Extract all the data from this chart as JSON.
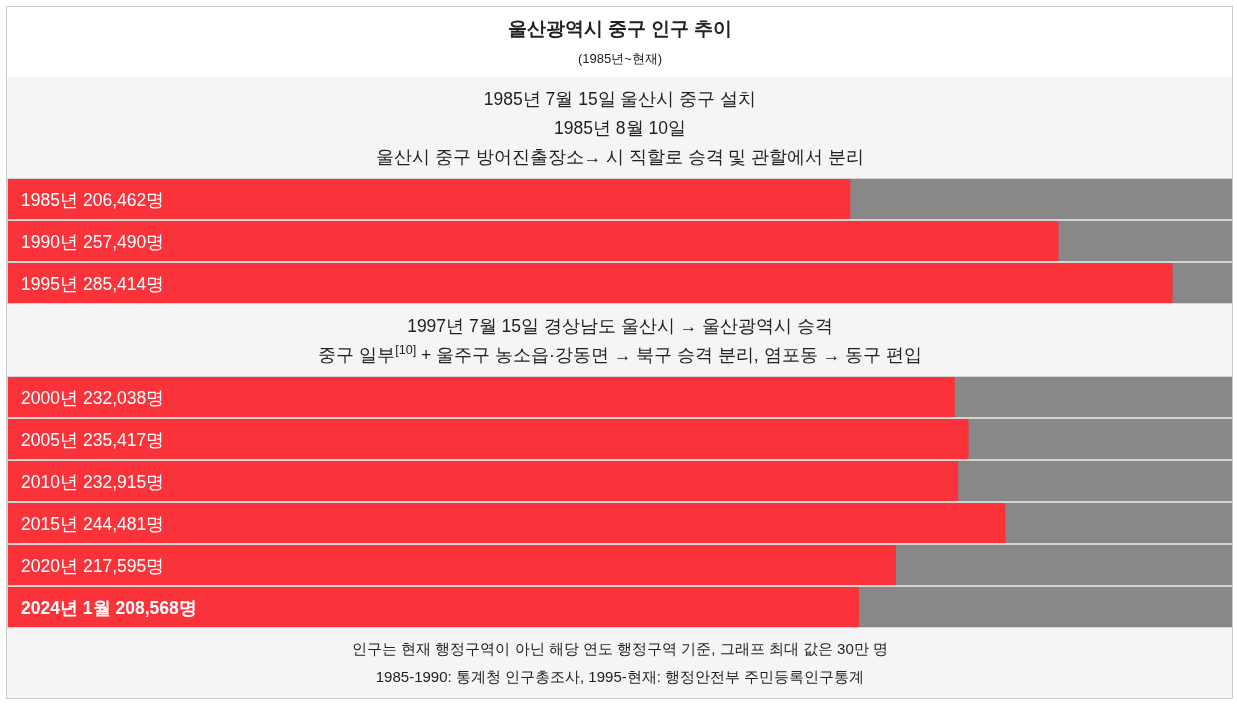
{
  "chart_data": {
    "type": "bar",
    "orientation": "horizontal",
    "title": "울산광역시 중구 인구 추이",
    "subtitle": "(1985년~현재)",
    "categories": [
      "1985년",
      "1990년",
      "1995년",
      "2000년",
      "2005년",
      "2010년",
      "2015년",
      "2020년",
      "2024년 1월"
    ],
    "values": [
      206462,
      257490,
      285414,
      232038,
      235417,
      232915,
      244481,
      217595,
      208568
    ],
    "value_labels": [
      "206,462명",
      "257,490명",
      "285,414명",
      "232,038명",
      "235,417명",
      "232,915명",
      "244,481명",
      "217,595명",
      "208,568명"
    ],
    "color": "#fa323a",
    "xlim": [
      0,
      300000
    ],
    "annotations": [
      "1985년 7월 15일 울산시 중구 설치",
      "1985년 8월 10일",
      "울산시 중구 방어진출장소→ 시 직할로 승격 및 관할에서 분리",
      "1997년 7월 15일 경상남도 울산시 → 울산광역시 승격",
      "중구 일부$^{[10]}$ + 울주구 농소읍·강동면 → 북구 승격 분리, 염포동 → 동구 편입",
      "인구는 현재 행정구역이 아닌 해당 연도 행정구역 기준, 그래프 최대 값은 30만 명",
      "1985-1990: 통계청 인구총조사, 1995-현재: 행정안전부 주민등록인구통계"
    ]
  }
}
